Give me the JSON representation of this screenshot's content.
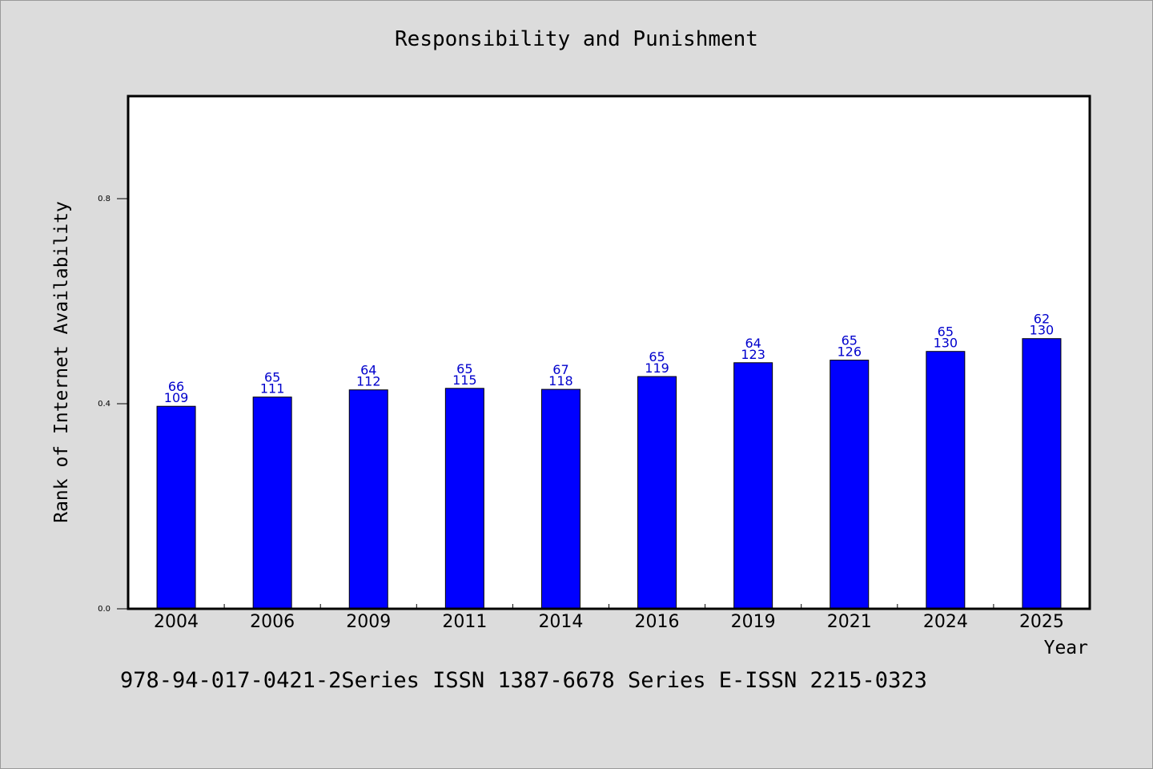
{
  "chart_data": {
    "type": "bar",
    "title": "Responsibility and Punishment",
    "xlabel": "Year",
    "ylabel": "Rank of Internet Availability",
    "categories": [
      "2004",
      "2006",
      "2009",
      "2011",
      "2014",
      "2016",
      "2019",
      "2021",
      "2024",
      "2025"
    ],
    "values": [
      0.395,
      0.413,
      0.427,
      0.43,
      0.428,
      0.453,
      0.48,
      0.485,
      0.502,
      0.527
    ],
    "data_labels_top": [
      "66",
      "65",
      "64",
      "65",
      "67",
      "65",
      "64",
      "65",
      "65",
      "62"
    ],
    "data_labels_bottom": [
      "109",
      "111",
      "112",
      "115",
      "118",
      "119",
      "123",
      "126",
      "130",
      "130"
    ],
    "ylim": [
      0,
      1.0
    ],
    "yticks": [
      "0.0",
      "0.4",
      "0.8"
    ],
    "ytick_values": [
      0,
      0.4,
      0.8
    ],
    "grid": false,
    "bar_color": "#0000ff",
    "label_color": "#0000cc"
  },
  "footer": "978-94-017-0421-2Series ISSN 1387-6678 Series E-ISSN 2215-0323",
  "colors": {
    "background": "#dcdcdc",
    "plot_background": "#ffffff"
  }
}
